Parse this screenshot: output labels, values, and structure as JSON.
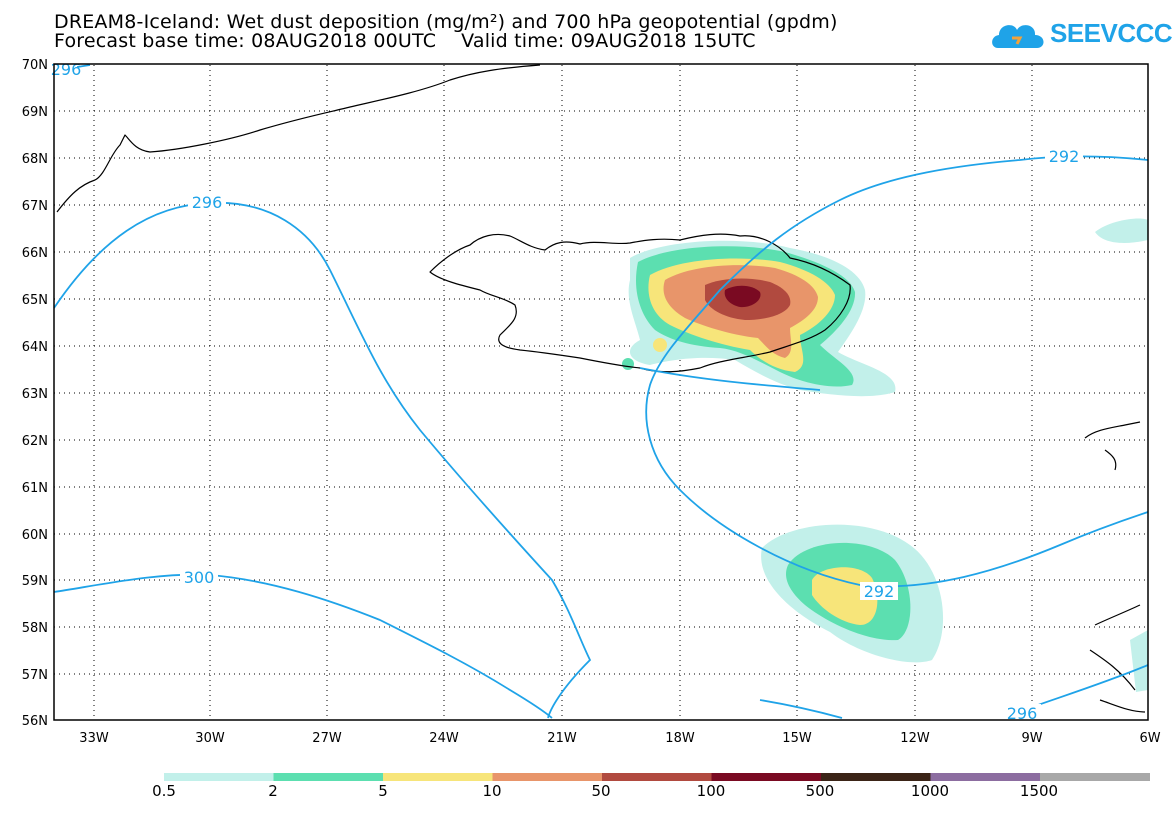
{
  "title_line1": "DREAM8-Iceland: Wet dust deposition (mg/m²) and 700 hPa geopotential (gpdm)",
  "title_line2": "Forecast base time: 08AUG2018 00UTC    Valid time: 09AUG2018 15UTC",
  "logo_text": "SEEVCCC",
  "lat_labels": [
    "70N",
    "69N",
    "68N",
    "67N",
    "66N",
    "65N",
    "64N",
    "63N",
    "62N",
    "61N",
    "60N",
    "59N",
    "58N",
    "57N",
    "56N"
  ],
  "lon_labels": [
    "33W",
    "30W",
    "27W",
    "24W",
    "21W",
    "18W",
    "15W",
    "12W",
    "9W",
    "6W"
  ],
  "contour_labels": [
    "296",
    "292",
    "296",
    "300",
    "292",
    "296"
  ],
  "colorbar": {
    "labels": [
      "0.5",
      "2",
      "5",
      "10",
      "50",
      "100",
      "500",
      "1000",
      "1500"
    ],
    "colors": [
      "#c2f0ea",
      "#5cdfb0",
      "#f7e57a",
      "#e8956a",
      "#b14a3f",
      "#7a0a22",
      "#3b2417",
      "#8c6da0",
      "#a8a8a8"
    ]
  },
  "colors": {
    "contour": "#1fa3e8",
    "coast": "#000000"
  }
}
